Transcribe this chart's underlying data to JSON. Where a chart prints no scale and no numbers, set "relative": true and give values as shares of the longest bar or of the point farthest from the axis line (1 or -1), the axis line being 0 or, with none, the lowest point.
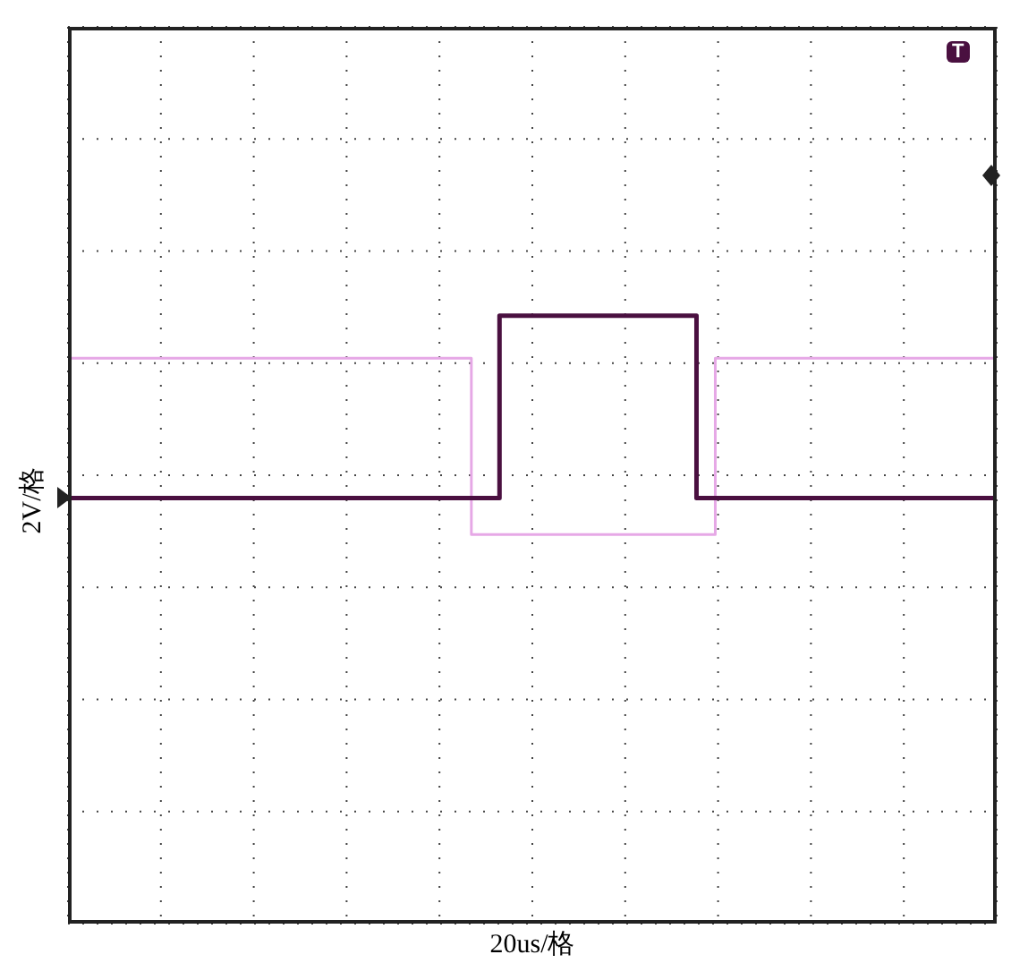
{
  "chart_data": {
    "type": "step",
    "relative": true,
    "xlabel": "20us/格",
    "ylabel": "2V/格",
    "grid": true,
    "annotations": [
      "T"
    ],
    "categories": [
      null,
      null,
      null,
      null,
      null,
      null,
      null,
      null,
      null,
      null,
      null,
      null,
      null,
      null,
      null,
      null,
      null,
      null,
      null,
      null,
      null,
      null,
      null,
      null,
      null,
      null,
      null,
      null,
      null,
      null,
      null,
      null,
      null,
      null,
      null,
      null,
      null,
      null,
      null,
      null,
      null,
      null,
      null,
      null,
      null,
      null,
      null,
      null,
      null,
      null,
      null,
      null,
      null,
      null,
      null,
      null,
      null,
      null,
      null,
      null,
      null,
      null,
      null,
      null,
      null,
      null,
      null,
      null,
      null,
      null,
      null,
      null,
      null,
      null,
      null,
      null,
      null,
      null,
      null,
      null,
      null,
      null,
      null,
      null,
      null,
      null,
      null,
      null,
      null,
      null,
      null,
      null,
      null,
      null,
      null,
      null,
      null,
      null,
      null,
      null
    ],
    "series": [
      {
        "color": "#e6a8e6",
        "values": [
          0.93,
          0.93,
          0.93,
          0.93,
          0.93,
          0.93,
          0.93,
          0.93,
          0.93,
          0.93,
          0.93,
          0.93,
          0.93,
          0.93,
          0.93,
          0.93,
          0.93,
          0.93,
          0.93,
          0.93,
          0.93,
          0.93,
          0.93,
          0.93,
          0.93,
          0.93,
          0.93,
          0.93,
          0.93,
          0.93,
          0.93,
          0.93,
          0.93,
          0.93,
          0.93,
          0.93,
          0.93,
          0.93,
          0.93,
          0.93,
          0.93,
          0.93,
          0.93,
          0.64,
          0.64,
          0.64,
          0.64,
          0.64,
          0.64,
          0.64,
          0.64,
          0.64,
          0.64,
          0.64,
          0.64,
          0.64,
          0.64,
          0.64,
          0.64,
          0.64,
          0.64,
          0.64,
          0.64,
          0.64,
          0.64,
          0.64,
          0.64,
          0.64,
          0.64,
          0.93,
          0.93,
          0.93,
          0.93,
          0.93,
          0.93,
          0.93,
          0.93,
          0.93,
          0.93,
          0.93,
          0.93,
          0.93,
          0.93,
          0.93,
          0.93,
          0.93,
          0.93,
          0.93,
          0.93,
          0.93,
          0.93,
          0.93,
          0.93,
          0.93,
          0.93,
          0.93,
          0.93,
          0.93,
          0.93,
          0.93
        ]
      },
      {
        "color": "#4a1040",
        "values": [
          0.7,
          0.7,
          0.7,
          0.7,
          0.7,
          0.7,
          0.7,
          0.7,
          0.7,
          0.7,
          0.7,
          0.7,
          0.7,
          0.7,
          0.7,
          0.7,
          0.7,
          0.7,
          0.7,
          0.7,
          0.7,
          0.7,
          0.7,
          0.7,
          0.7,
          0.7,
          0.7,
          0.7,
          0.7,
          0.7,
          0.7,
          0.7,
          0.7,
          0.7,
          0.7,
          0.7,
          0.7,
          0.7,
          0.7,
          0.7,
          0.7,
          0.7,
          0.7,
          0.7,
          0.7,
          0.7,
          1,
          1,
          1,
          1,
          1,
          1,
          1,
          1,
          1,
          1,
          1,
          1,
          1,
          1,
          1,
          1,
          1,
          1,
          1,
          1,
          1,
          0.7,
          0.7,
          0.7,
          0.7,
          0.7,
          0.7,
          0.7,
          0.7,
          0.7,
          0.7,
          0.7,
          0.7,
          0.7,
          0.7,
          0.7,
          0.7,
          0.7,
          0.7,
          0.7,
          0.7,
          0.7,
          0.7,
          0.7,
          0.7,
          0.7,
          0.7,
          0.7,
          0.7,
          0.7,
          0.7,
          0.7,
          0.7,
          0.7
        ]
      }
    ]
  }
}
